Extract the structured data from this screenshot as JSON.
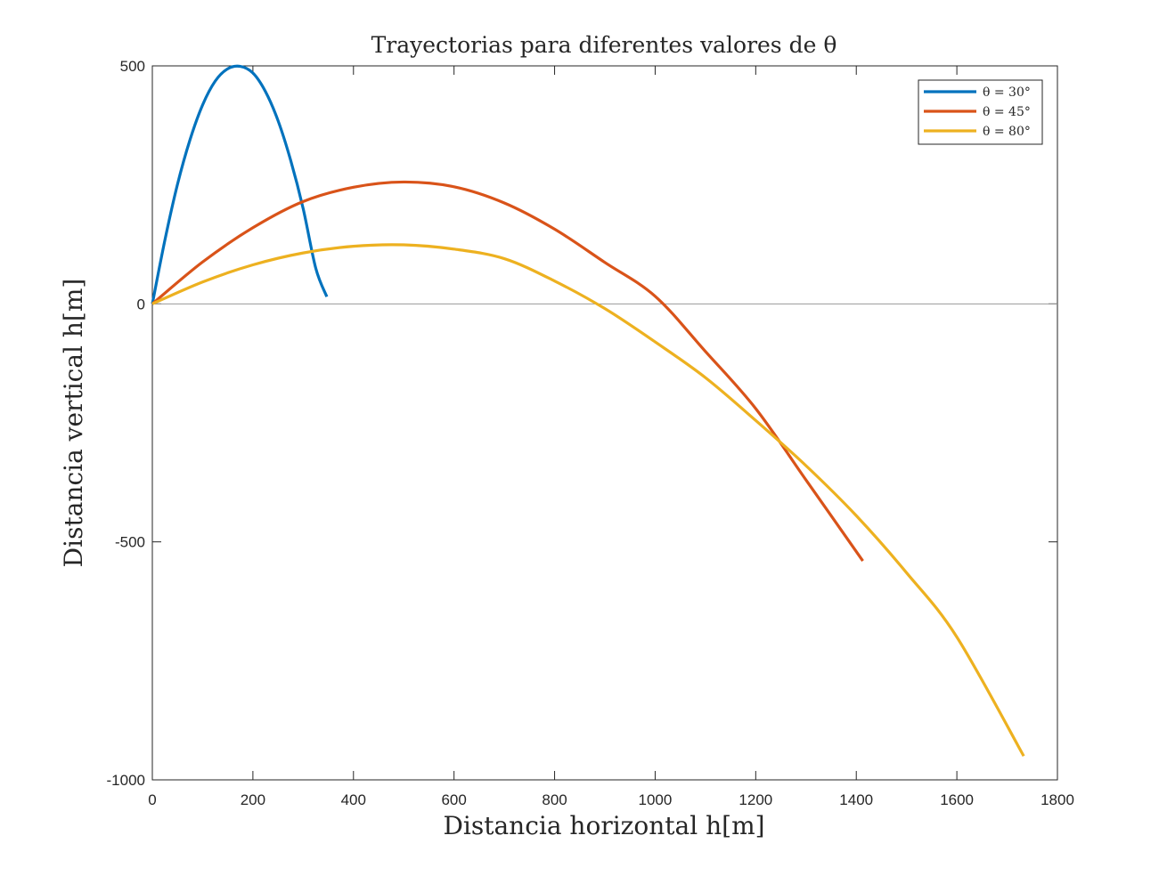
{
  "chart_data": {
    "type": "line",
    "title": "Trayectorias para diferentes valores de θ",
    "xlabel": "Distancia horizontal h[m]",
    "ylabel": "Distancia vertical h[m]",
    "xlim": [
      0,
      1800
    ],
    "ylim": [
      -1000,
      500
    ],
    "xticks": [
      "0",
      "200",
      "400",
      "600",
      "800",
      "1000",
      "1200",
      "1400",
      "1600",
      "1800"
    ],
    "yticks": [
      "500",
      "0",
      "-500",
      "-1000"
    ],
    "grid": false,
    "reference_line": {
      "y": 0,
      "color": "#999999"
    },
    "legend": {
      "position": "top-right"
    },
    "series": [
      {
        "name": "θ = 30°",
        "color": "#0072BD",
        "x": [
          0,
          25,
          50,
          75,
          100,
          125,
          150,
          175,
          200,
          225,
          250,
          275,
          300,
          325,
          347
        ],
        "y": [
          0,
          134,
          251,
          345,
          418,
          468,
          494,
          499,
          485,
          446,
          385,
          302,
          200,
          75,
          15
        ]
      },
      {
        "name": "θ = 45°",
        "color": "#D95319",
        "x": [
          0,
          100,
          200,
          300,
          400,
          500,
          600,
          700,
          800,
          900,
          1000,
          1100,
          1200,
          1300,
          1413
        ],
        "y": [
          0,
          88,
          160,
          215,
          245,
          256,
          246,
          212,
          157,
          87,
          16,
          -100,
          -220,
          -370,
          -540
        ]
      },
      {
        "name": "θ = 80°",
        "color": "#EDB120",
        "x": [
          0,
          100,
          200,
          300,
          400,
          500,
          600,
          700,
          800,
          900,
          1000,
          1100,
          1200,
          1300,
          1400,
          1500,
          1600,
          1733
        ],
        "y": [
          0,
          46,
          82,
          107,
          121,
          124,
          115,
          95,
          48,
          -10,
          -80,
          -155,
          -245,
          -340,
          -445,
          -565,
          -700,
          -950
        ]
      }
    ]
  }
}
